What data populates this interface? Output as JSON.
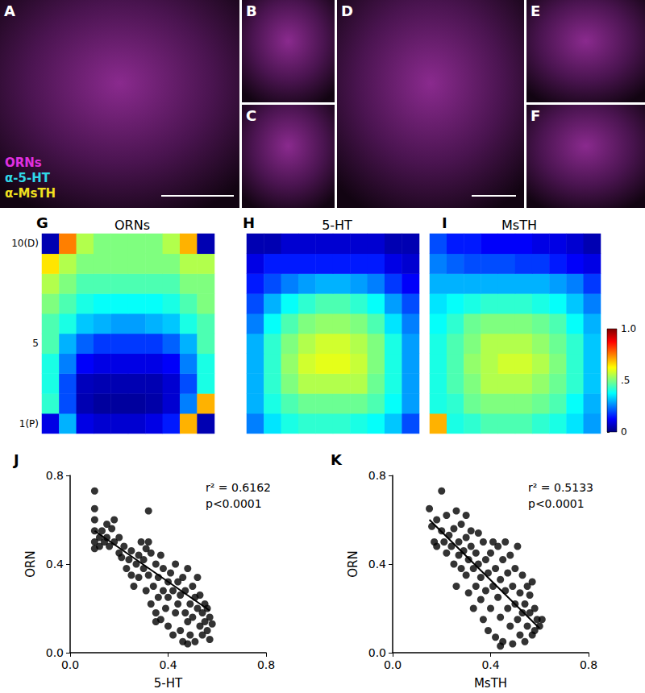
{
  "images": [
    {
      "panel": "A",
      "channels": [
        {
          "name": "ORNs",
          "color": "#e030e0"
        },
        {
          "name": "α-5-HT",
          "color": "#30d8e8"
        },
        {
          "name": "α-MsTH",
          "color": "#f0e020"
        }
      ]
    },
    {
      "panel": "B"
    },
    {
      "panel": "C"
    },
    {
      "panel": "D"
    },
    {
      "panel": "E"
    },
    {
      "panel": "F"
    }
  ],
  "chart_data": [
    {
      "type": "heatmap",
      "panel": "G",
      "title": "ORNs",
      "tick_labels": "y",
      "categories": [
        null,
        null,
        null,
        null,
        null,
        null,
        null,
        null,
        null,
        null
      ],
      "y_categories": [
        "1(P)",
        null,
        null,
        null,
        "5",
        null,
        null,
        null,
        null,
        "10(D)"
      ],
      "zlim": [
        0,
        1
      ],
      "cells": [
        [
          0.1,
          0.3,
          0.1,
          0.08,
          0.08,
          0.08,
          0.1,
          0.15,
          0.7,
          0.05
        ],
        [
          0.42,
          0.2,
          0.05,
          0.03,
          0.03,
          0.03,
          0.04,
          0.08,
          0.25,
          0.7
        ],
        [
          0.4,
          0.2,
          0.06,
          0.05,
          0.05,
          0.05,
          0.05,
          0.08,
          0.2,
          0.4
        ],
        [
          0.4,
          0.25,
          0.12,
          0.1,
          0.1,
          0.1,
          0.1,
          0.12,
          0.25,
          0.4
        ],
        [
          0.45,
          0.3,
          0.22,
          0.18,
          0.18,
          0.18,
          0.18,
          0.22,
          0.3,
          0.45
        ],
        [
          0.45,
          0.4,
          0.32,
          0.3,
          0.28,
          0.28,
          0.3,
          0.32,
          0.4,
          0.45
        ],
        [
          0.5,
          0.45,
          0.4,
          0.38,
          0.38,
          0.38,
          0.38,
          0.4,
          0.45,
          0.5
        ],
        [
          0.55,
          0.5,
          0.45,
          0.45,
          0.45,
          0.45,
          0.45,
          0.45,
          0.5,
          0.5
        ],
        [
          0.65,
          0.55,
          0.5,
          0.5,
          0.5,
          0.5,
          0.5,
          0.5,
          0.55,
          0.55
        ],
        [
          0.05,
          0.75,
          0.55,
          0.5,
          0.5,
          0.5,
          0.5,
          0.55,
          0.7,
          0.05
        ]
      ]
    },
    {
      "type": "heatmap",
      "panel": "H",
      "title": "5-HT",
      "tick_labels": false,
      "categories": [
        null,
        null,
        null,
        null,
        null,
        null,
        null,
        null,
        null,
        null
      ],
      "y_categories": [
        null,
        null,
        null,
        null,
        null,
        null,
        null,
        null,
        null,
        null
      ],
      "zlim": [
        0,
        1
      ],
      "cells": [
        [
          0.25,
          0.35,
          0.4,
          0.42,
          0.42,
          0.42,
          0.4,
          0.38,
          0.32,
          0.2
        ],
        [
          0.3,
          0.4,
          0.45,
          0.48,
          0.48,
          0.48,
          0.48,
          0.45,
          0.38,
          0.28
        ],
        [
          0.3,
          0.42,
          0.5,
          0.55,
          0.55,
          0.55,
          0.55,
          0.48,
          0.4,
          0.28
        ],
        [
          0.3,
          0.42,
          0.52,
          0.58,
          0.6,
          0.6,
          0.57,
          0.5,
          0.4,
          0.28
        ],
        [
          0.3,
          0.42,
          0.5,
          0.55,
          0.58,
          0.58,
          0.55,
          0.5,
          0.4,
          0.28
        ],
        [
          0.25,
          0.38,
          0.45,
          0.5,
          0.52,
          0.52,
          0.5,
          0.45,
          0.35,
          0.25
        ],
        [
          0.2,
          0.3,
          0.38,
          0.42,
          0.45,
          0.45,
          0.42,
          0.38,
          0.28,
          0.2
        ],
        [
          0.15,
          0.2,
          0.25,
          0.28,
          0.3,
          0.3,
          0.28,
          0.25,
          0.18,
          0.12
        ],
        [
          0.1,
          0.15,
          0.15,
          0.15,
          0.15,
          0.15,
          0.15,
          0.15,
          0.1,
          0.08
        ],
        [
          0.05,
          0.05,
          0.08,
          0.08,
          0.08,
          0.08,
          0.08,
          0.08,
          0.05,
          0.05
        ]
      ]
    },
    {
      "type": "heatmap",
      "panel": "I",
      "title": "MsTH",
      "tick_labels": false,
      "categories": [
        null,
        null,
        null,
        null,
        null,
        null,
        null,
        null,
        null,
        null
      ],
      "y_categories": [
        null,
        null,
        null,
        null,
        null,
        null,
        null,
        null,
        null,
        null
      ],
      "zlim": [
        0,
        1
      ],
      "colorbar": {
        "ticks": [
          0,
          {
            "value": 0.5,
            "label": ".5"
          },
          {
            "value": 1,
            "label": "1.0"
          }
        ]
      },
      "cells": [
        [
          0.7,
          0.4,
          0.42,
          0.45,
          0.45,
          0.45,
          0.42,
          0.4,
          0.35,
          0.28
        ],
        [
          0.4,
          0.42,
          0.48,
          0.5,
          0.5,
          0.5,
          0.48,
          0.45,
          0.38,
          0.3
        ],
        [
          0.4,
          0.45,
          0.5,
          0.55,
          0.55,
          0.55,
          0.52,
          0.48,
          0.42,
          0.32
        ],
        [
          0.4,
          0.45,
          0.52,
          0.55,
          0.58,
          0.58,
          0.55,
          0.5,
          0.42,
          0.32
        ],
        [
          0.4,
          0.45,
          0.5,
          0.55,
          0.55,
          0.55,
          0.52,
          0.48,
          0.42,
          0.32
        ],
        [
          0.38,
          0.42,
          0.48,
          0.5,
          0.5,
          0.5,
          0.48,
          0.45,
          0.38,
          0.3
        ],
        [
          0.35,
          0.38,
          0.4,
          0.42,
          0.42,
          0.42,
          0.4,
          0.38,
          0.32,
          0.25
        ],
        [
          0.3,
          0.3,
          0.3,
          0.3,
          0.3,
          0.3,
          0.3,
          0.28,
          0.25,
          0.18
        ],
        [
          0.25,
          0.22,
          0.2,
          0.2,
          0.2,
          0.18,
          0.18,
          0.15,
          0.12,
          0.1
        ],
        [
          0.2,
          0.15,
          0.15,
          0.12,
          0.12,
          0.12,
          0.1,
          0.1,
          0.08,
          0.05
        ]
      ]
    },
    {
      "type": "scatter",
      "panel": "J",
      "x_label": "5-HT",
      "y_label": "ORN",
      "color": "#000000",
      "marker": "circle",
      "grid": false,
      "xlim": [
        0,
        0.8
      ],
      "xticks": [
        {
          "value": 0,
          "label": "0.0"
        },
        0.4,
        0.8
      ],
      "ylim": [
        0,
        0.8
      ],
      "yticks": [
        {
          "value": 0,
          "label": "0.0"
        },
        0.4,
        0.8
      ],
      "annotations": [
        "r² = 0.6162",
        "p<0.0001"
      ],
      "trend_line": {
        "x": [
          0.1,
          0.57
        ],
        "y": [
          0.55,
          0.19
        ]
      },
      "x": [
        0.1,
        0.1,
        0.1,
        0.1,
        0.1,
        0.1,
        0.12,
        0.12,
        0.13,
        0.14,
        0.15,
        0.15,
        0.16,
        0.17,
        0.18,
        0.18,
        0.2,
        0.2,
        0.21,
        0.22,
        0.23,
        0.24,
        0.25,
        0.25,
        0.26,
        0.27,
        0.28,
        0.28,
        0.29,
        0.3,
        0.3,
        0.31,
        0.31,
        0.32,
        0.32,
        0.32,
        0.33,
        0.33,
        0.34,
        0.35,
        0.35,
        0.36,
        0.36,
        0.37,
        0.37,
        0.38,
        0.38,
        0.39,
        0.4,
        0.4,
        0.4,
        0.41,
        0.42,
        0.42,
        0.43,
        0.43,
        0.44,
        0.44,
        0.45,
        0.45,
        0.46,
        0.46,
        0.47,
        0.47,
        0.48,
        0.48,
        0.49,
        0.49,
        0.5,
        0.5,
        0.51,
        0.51,
        0.52,
        0.52,
        0.53,
        0.53,
        0.54,
        0.54,
        0.55,
        0.55,
        0.56,
        0.56,
        0.57,
        0.57,
        0.58,
        0.48,
        0.35
      ],
      "values": [
        0.73,
        0.65,
        0.6,
        0.55,
        0.5,
        0.47,
        0.52,
        0.48,
        0.55,
        0.5,
        0.58,
        0.52,
        0.48,
        0.56,
        0.5,
        0.6,
        0.45,
        0.52,
        0.43,
        0.48,
        0.38,
        0.42,
        0.35,
        0.46,
        0.3,
        0.4,
        0.44,
        0.34,
        0.5,
        0.38,
        0.42,
        0.47,
        0.28,
        0.64,
        0.5,
        0.35,
        0.45,
        0.22,
        0.3,
        0.4,
        0.18,
        0.25,
        0.34,
        0.15,
        0.44,
        0.28,
        0.38,
        0.2,
        0.32,
        0.12,
        0.25,
        0.36,
        0.08,
        0.28,
        0.18,
        0.4,
        0.22,
        0.32,
        0.1,
        0.26,
        0.05,
        0.34,
        0.18,
        0.28,
        0.14,
        0.38,
        0.22,
        0.08,
        0.3,
        0.16,
        0.25,
        0.05,
        0.2,
        0.34,
        0.12,
        0.26,
        0.18,
        0.08,
        0.22,
        0.14,
        0.2,
        0.1,
        0.16,
        0.06,
        0.13,
        0.04,
        0.14
      ]
    },
    {
      "type": "scatter",
      "panel": "K",
      "x_label": "MsTH",
      "y_label": "ORN",
      "color": "#000000",
      "marker": "circle",
      "grid": false,
      "xlim": [
        0,
        0.8
      ],
      "xticks": [
        {
          "value": 0,
          "label": "0.0"
        },
        0.4,
        0.8
      ],
      "ylim": [
        0,
        0.8
      ],
      "yticks": [
        {
          "value": 0,
          "label": "0.0"
        },
        0.4,
        0.8
      ],
      "annotations": [
        "r² = 0.5133",
        "p<0.0001"
      ],
      "trend_line": {
        "x": [
          0.15,
          0.6
        ],
        "y": [
          0.6,
          0.11
        ]
      },
      "x": [
        0.15,
        0.16,
        0.17,
        0.18,
        0.18,
        0.2,
        0.2,
        0.21,
        0.22,
        0.22,
        0.23,
        0.24,
        0.25,
        0.25,
        0.26,
        0.26,
        0.27,
        0.27,
        0.28,
        0.28,
        0.29,
        0.3,
        0.3,
        0.31,
        0.31,
        0.32,
        0.32,
        0.33,
        0.33,
        0.34,
        0.34,
        0.35,
        0.35,
        0.36,
        0.36,
        0.37,
        0.37,
        0.38,
        0.38,
        0.39,
        0.39,
        0.4,
        0.4,
        0.41,
        0.41,
        0.42,
        0.42,
        0.43,
        0.43,
        0.44,
        0.44,
        0.45,
        0.45,
        0.46,
        0.46,
        0.47,
        0.47,
        0.48,
        0.48,
        0.49,
        0.49,
        0.5,
        0.5,
        0.51,
        0.51,
        0.52,
        0.52,
        0.53,
        0.53,
        0.54,
        0.54,
        0.55,
        0.55,
        0.56,
        0.56,
        0.57,
        0.57,
        0.58,
        0.58,
        0.59,
        0.6,
        0.61,
        0.44,
        0.3
      ],
      "values": [
        0.65,
        0.57,
        0.5,
        0.6,
        0.48,
        0.73,
        0.55,
        0.5,
        0.62,
        0.45,
        0.53,
        0.48,
        0.56,
        0.4,
        0.64,
        0.3,
        0.5,
        0.44,
        0.38,
        0.58,
        0.46,
        0.35,
        0.52,
        0.42,
        0.27,
        0.48,
        0.55,
        0.38,
        0.2,
        0.45,
        0.3,
        0.54,
        0.4,
        0.24,
        0.34,
        0.5,
        0.15,
        0.42,
        0.28,
        0.36,
        0.1,
        0.45,
        0.2,
        0.3,
        0.5,
        0.38,
        0.07,
        0.25,
        0.48,
        0.16,
        0.33,
        0.42,
        0.05,
        0.28,
        0.5,
        0.2,
        0.36,
        0.12,
        0.44,
        0.3,
        0.04,
        0.22,
        0.38,
        0.15,
        0.48,
        0.27,
        0.08,
        0.35,
        0.18,
        0.22,
        0.05,
        0.3,
        0.12,
        0.26,
        0.18,
        0.08,
        0.32,
        0.2,
        0.1,
        0.15,
        0.12,
        0.15,
        0.03,
        0.62
      ]
    }
  ]
}
